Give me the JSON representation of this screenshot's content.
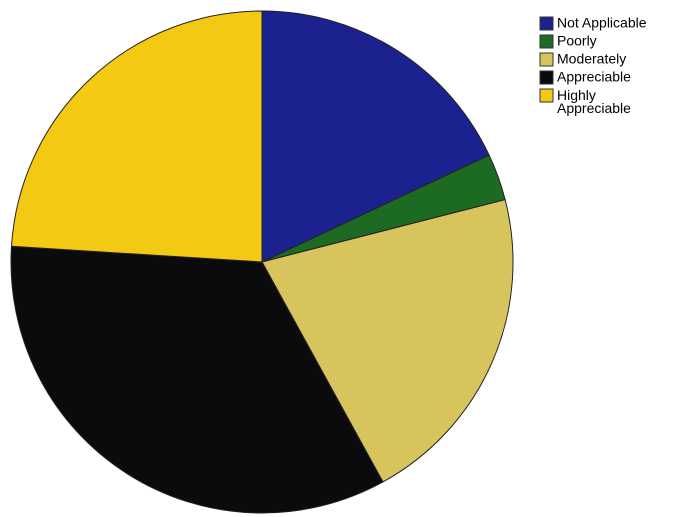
{
  "chart_data": {
    "type": "pie",
    "categories": [
      "Not Applicable",
      "Poorly",
      "Moderately",
      "Appreciable",
      "Highly Appreciable"
    ],
    "values": [
      18,
      3,
      21,
      34,
      24
    ],
    "colors": [
      "#1c2190",
      "#1d6a22",
      "#d8c45c",
      "#0b0b0d",
      "#f3c914"
    ],
    "legend": "top-right"
  }
}
